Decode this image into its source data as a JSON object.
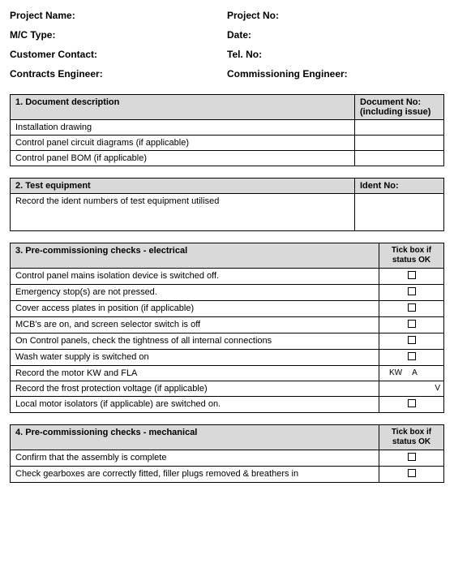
{
  "header": {
    "project_name": "Project Name:",
    "project_no": "Project No:",
    "mc_type": "M/C Type:",
    "date": "Date:",
    "customer_contact": "Customer Contact:",
    "tel_no": "Tel. No:",
    "contracts_engineer": "Contracts Engineer:",
    "commissioning_engineer": "Commissioning Engineer:"
  },
  "section1": {
    "title": "1. Document description",
    "col2": "Document No: (including issue)",
    "rows": [
      "Installation drawing",
      "Control panel circuit diagrams (if applicable)",
      "Control panel BOM (if applicable)"
    ]
  },
  "section2": {
    "title": "2. Test equipment",
    "col2": "Ident No:",
    "row": "Record the ident numbers of test equipment utilised"
  },
  "section3": {
    "title": "3. Pre-commissioning checks - electrical",
    "col2": "Tick box if status OK",
    "rows": [
      {
        "text": "Control panel mains isolation device is switched off.",
        "type": "check"
      },
      {
        "text": "Emergency stop(s) are not pressed.",
        "type": "check"
      },
      {
        "text": "Cover access plates in position (if applicable)",
        "type": "check"
      },
      {
        "text": "MCB's are on, and screen selector switch is off",
        "type": "check"
      },
      {
        "text": "On Control panels, check the tightness of all internal connections",
        "type": "check"
      },
      {
        "text": "Wash water supply is switched on",
        "type": "check"
      },
      {
        "text": "Record the motor KW and FLA",
        "type": "kwa",
        "kw": "KW",
        "a": "A"
      },
      {
        "text": "Record the frost protection voltage (if applicable)",
        "type": "v",
        "v": "V"
      },
      {
        "text": "Local motor isolators (if applicable) are switched on.",
        "type": "check"
      }
    ]
  },
  "section4": {
    "title": "4. Pre-commissioning checks - mechanical",
    "col2": "Tick box if status OK",
    "rows": [
      "Confirm that the assembly is complete",
      "Check gearboxes are correctly fitted, filler plugs removed & breathers in"
    ]
  }
}
